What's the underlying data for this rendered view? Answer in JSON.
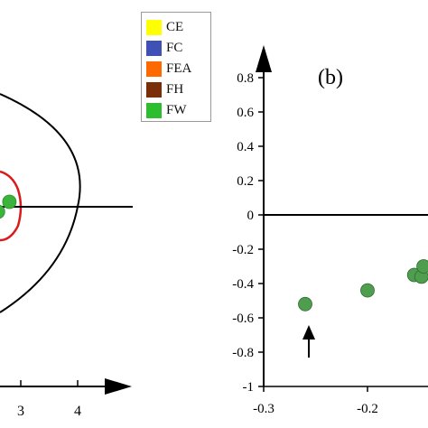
{
  "chart_data": [
    {
      "type": "scatter",
      "panel": "a",
      "title": "",
      "x_ticks": [
        "3",
        "4"
      ],
      "ylim": [
        -1,
        1
      ],
      "annotations": [
        "black boundary curve",
        "red boundary curve",
        "horizontal reference line"
      ],
      "series": [
        {
          "name": "FW",
          "color": "#3cb43c",
          "points": [
            {
              "x": 2.8,
              "y": 0.05
            },
            {
              "x": 2.6,
              "y": -0.05
            }
          ]
        }
      ]
    },
    {
      "type": "scatter",
      "panel": "b",
      "title": "(b)",
      "x_ticks": [
        "-0.3",
        "-0.2"
      ],
      "y_ticks": [
        "0.8",
        "0.6",
        "0.4",
        "0.2",
        "0",
        "-0.2",
        "-0.4",
        "-0.6",
        "-0.8",
        "-1"
      ],
      "xlim": [
        -0.3,
        -0.14
      ],
      "ylim": [
        -1,
        0.9
      ],
      "annotations": [
        "arrow pointing to point at x = -0.26"
      ],
      "series": [
        {
          "name": "FW",
          "color": "#4f9e4f",
          "points": [
            {
              "x": -0.26,
              "y": -0.52
            },
            {
              "x": -0.2,
              "y": -0.44
            },
            {
              "x": -0.155,
              "y": -0.35
            },
            {
              "x": -0.148,
              "y": -0.36
            },
            {
              "x": -0.146,
              "y": -0.3
            }
          ]
        }
      ]
    }
  ],
  "legend": {
    "items": [
      {
        "label": "CE",
        "color": "#ffff00"
      },
      {
        "label": "FC",
        "color": "#3f51b5"
      },
      {
        "label": "FEA",
        "color": "#ff6a00"
      },
      {
        "label": "FH",
        "color": "#7a2e0a"
      },
      {
        "label": "FW",
        "color": "#2ebd2e"
      }
    ]
  }
}
